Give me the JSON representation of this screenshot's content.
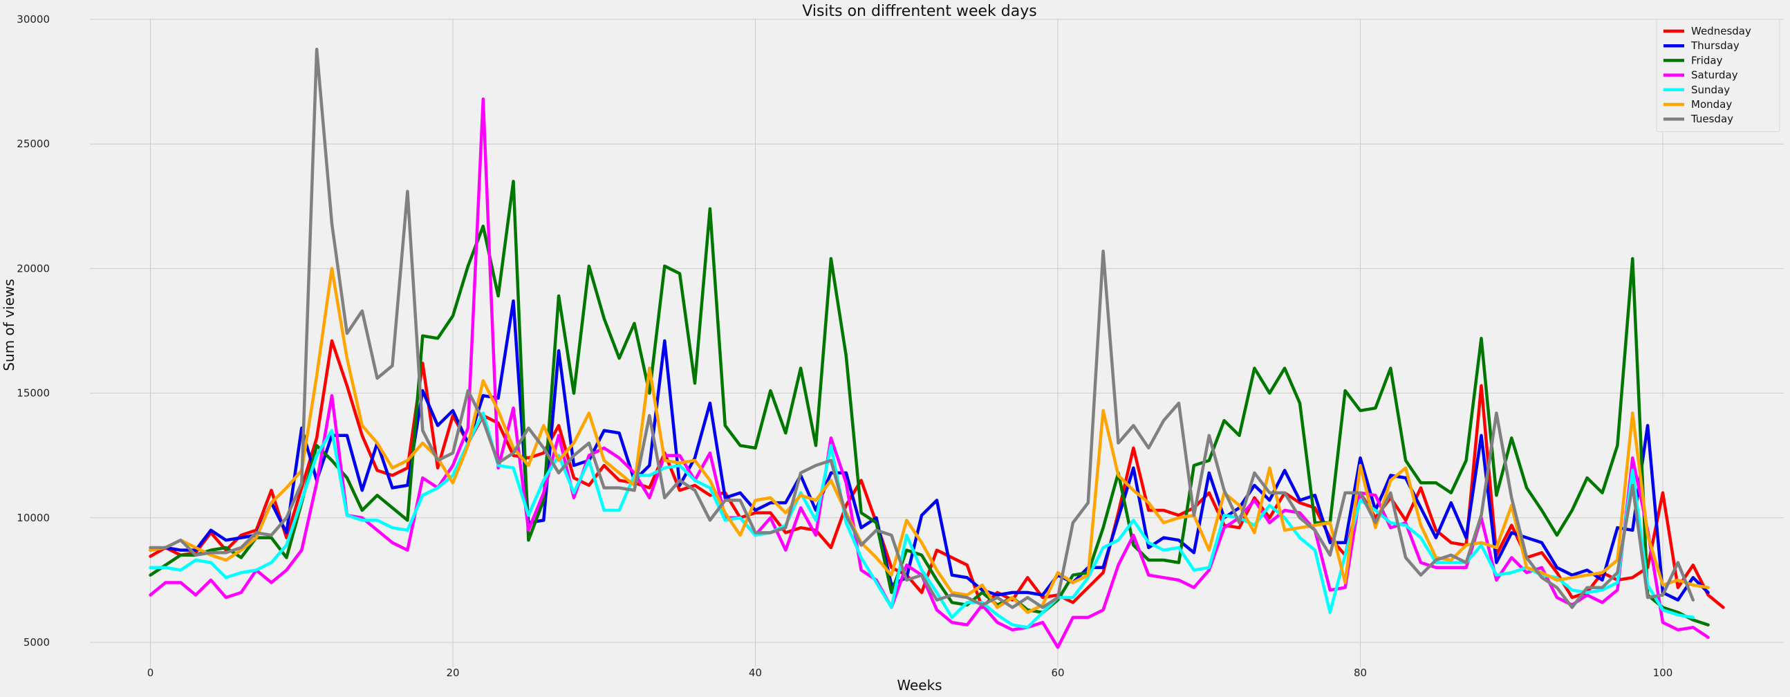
{
  "chart_data": {
    "type": "line",
    "title": "Visits on diffrentent week days",
    "xlabel": "Weeks",
    "ylabel": "Sum of views",
    "xlim": [
      -4,
      108
    ],
    "ylim": [
      4000,
      30000
    ],
    "xticks": [
      0,
      20,
      40,
      60,
      80,
      100
    ],
    "yticks": [
      5000,
      10000,
      15000,
      20000,
      25000,
      30000
    ],
    "grid": true,
    "legend_position": "top-right",
    "series": [
      {
        "name": "Wednesday",
        "color": "#ff0000",
        "x_start": 0,
        "values": [
          8450,
          8800,
          8500,
          8600,
          9400,
          8700,
          9300,
          9500,
          11100,
          9200,
          11200,
          13200,
          17100,
          15300,
          13300,
          11900,
          11700,
          12000,
          16200,
          12000,
          14100,
          13000,
          14100,
          13800,
          12500,
          12400,
          12600,
          13700,
          11600,
          11300,
          12100,
          11500,
          11400,
          11200,
          12600,
          11100,
          11300,
          10900,
          11000,
          10000,
          10200,
          10200,
          9400,
          9600,
          9500,
          8800,
          10500,
          11500,
          9800,
          8000,
          7700,
          7000,
          8700,
          8400,
          8100,
          6400,
          7000,
          6700,
          7600,
          6800,
          6900,
          6600,
          7200,
          7800,
          10200,
          12800,
          10300,
          10300,
          10100,
          10400,
          11000,
          9700,
          9600,
          10800,
          10000,
          11000,
          10600,
          10400,
          9200,
          8500,
          11000,
          10000,
          10800,
          9900,
          11200,
          9500,
          9000,
          8900,
          15300,
          8500,
          9700,
          8400,
          8600,
          7800,
          6800,
          7000,
          7800,
          7500,
          7600,
          8000,
          11000,
          7200,
          8100,
          6900,
          6400
        ]
      },
      {
        "name": "Thursday",
        "color": "#0000ee",
        "x_start": 0,
        "values": [
          8700,
          8800,
          8700,
          8700,
          9500,
          9100,
          9200,
          9300,
          10600,
          9400,
          13600,
          11500,
          13300,
          13300,
          11100,
          13000,
          11200,
          11300,
          15100,
          13700,
          14300,
          13000,
          14900,
          14800,
          18700,
          9800,
          9900,
          16700,
          12100,
          12300,
          13500,
          13400,
          11500,
          12100,
          17100,
          11300,
          12400,
          14600,
          10800,
          11000,
          10300,
          10600,
          10600,
          11700,
          10300,
          11800,
          11800,
          9600,
          10000,
          7300,
          7600,
          10100,
          10700,
          7700,
          7600,
          7100,
          6900,
          7000,
          7000,
          6900,
          7700,
          7400,
          8000,
          8000,
          10000,
          12000,
          8800,
          9200,
          9100,
          8600,
          11800,
          10000,
          10400,
          11300,
          10700,
          11900,
          10700,
          10900,
          9000,
          9000,
          12400,
          10300,
          11700,
          11600,
          10400,
          9200,
          10600,
          9200,
          13300,
          8200,
          9400,
          9200,
          9000,
          8000,
          7700,
          7900,
          7500,
          9600,
          9500,
          13700,
          7000,
          6700,
          7600,
          7000
        ]
      },
      {
        "name": "Friday",
        "color": "#007700",
        "x_start": 0,
        "values": [
          7700,
          8100,
          8500,
          8500,
          8700,
          8800,
          8400,
          9200,
          9200,
          8400,
          10600,
          12900,
          12300,
          11600,
          10300,
          10900,
          10400,
          9900,
          17300,
          17200,
          18100,
          20100,
          21700,
          18900,
          23500,
          9100,
          10700,
          18900,
          15000,
          20100,
          18000,
          16400,
          17800,
          15000,
          20100,
          19800,
          15400,
          22400,
          13700,
          12900,
          12800,
          15100,
          13400,
          16000,
          12900,
          20400,
          16500,
          10200,
          9800,
          7000,
          8700,
          8500,
          7500,
          6600,
          6500,
          7000,
          6500,
          6800,
          6300,
          6200,
          6700,
          7700,
          7800,
          9600,
          11800,
          8900,
          8300,
          8300,
          8200,
          12100,
          12300,
          13900,
          13300,
          16000,
          15000,
          16000,
          14600,
          9800,
          9800,
          15100,
          14300,
          14400,
          16000,
          12300,
          11400,
          11400,
          11000,
          12300,
          17200,
          10900,
          13200,
          11200,
          10300,
          9300,
          10300,
          11600,
          11000,
          12900,
          20400,
          6900,
          6400,
          6200,
          5900,
          5700
        ]
      },
      {
        "name": "Saturday",
        "color": "#ff00ff",
        "x_start": 0,
        "values": [
          6900,
          7400,
          7400,
          6900,
          7500,
          6800,
          7000,
          7900,
          7400,
          7900,
          8700,
          11400,
          14900,
          10100,
          10000,
          9500,
          9000,
          8700,
          11600,
          11200,
          12100,
          13600,
          26800,
          12000,
          14400,
          9500,
          11000,
          13300,
          10800,
          12500,
          12800,
          12400,
          11800,
          10800,
          12500,
          12500,
          11500,
          12600,
          10000,
          10000,
          9300,
          10000,
          8700,
          10400,
          9300,
          13200,
          11400,
          7900,
          7500,
          6400,
          8100,
          7700,
          6300,
          5800,
          5700,
          6500,
          5800,
          5500,
          5600,
          5800,
          4800,
          6000,
          6000,
          6300,
          8100,
          9300,
          7700,
          7600,
          7500,
          7200,
          7900,
          9600,
          10000,
          10700,
          9800,
          10300,
          10200,
          9500,
          7100,
          7200,
          11000,
          10900,
          9600,
          9800,
          8200,
          8000,
          8000,
          8000,
          10000,
          7500,
          8400,
          7800,
          8000,
          6800,
          6500,
          6900,
          6600,
          7100,
          12400,
          9500,
          5800,
          5500,
          5600,
          5200
        ]
      },
      {
        "name": "Sunday",
        "color": "#00ffff",
        "x_start": 0,
        "values": [
          8000,
          8000,
          7900,
          8300,
          8200,
          7600,
          7800,
          7900,
          8200,
          8900,
          10700,
          12500,
          13500,
          10100,
          9900,
          9900,
          9600,
          9500,
          10900,
          11200,
          11700,
          13000,
          14200,
          12100,
          12000,
          10100,
          11500,
          12500,
          11000,
          12300,
          10300,
          10300,
          11700,
          11700,
          12000,
          12100,
          11500,
          11200,
          9900,
          10000,
          9300,
          9400,
          9700,
          11000,
          9900,
          12900,
          9800,
          8400,
          7400,
          6400,
          9300,
          7900,
          7000,
          6000,
          6600,
          6600,
          6100,
          5700,
          5600,
          6200,
          6800,
          6800,
          7600,
          8800,
          9100,
          9900,
          9000,
          8700,
          8800,
          7900,
          8000,
          10100,
          10000,
          9700,
          10500,
          10000,
          9200,
          8700,
          6200,
          8500,
          10700,
          10300,
          9800,
          9700,
          9200,
          8200,
          8200,
          8200,
          8900,
          7700,
          7800,
          8000,
          7700,
          7600,
          7100,
          7000,
          7100,
          7400,
          11900,
          7300,
          6300,
          6100,
          6000
        ]
      },
      {
        "name": "Monday",
        "color": "#ffa500",
        "x_start": 0,
        "values": [
          8700,
          8800,
          9100,
          8800,
          8500,
          8300,
          8700,
          9200,
          10600,
          11200,
          11900,
          15700,
          20000,
          16400,
          13700,
          13000,
          12000,
          12300,
          13000,
          12400,
          11400,
          12900,
          15500,
          14300,
          12800,
          12100,
          13700,
          12300,
          13000,
          14200,
          12300,
          11800,
          11300,
          16000,
          12300,
          12200,
          12300,
          11500,
          10200,
          9300,
          10700,
          10800,
          10200,
          10900,
          10700,
          11500,
          10200,
          9000,
          8400,
          7700,
          9900,
          9000,
          7900,
          7000,
          6900,
          7300,
          6400,
          6800,
          6200,
          6500,
          7800,
          7400,
          7700,
          14300,
          11700,
          11100,
          10600,
          9800,
          10000,
          10100,
          8700,
          11000,
          10500,
          9400,
          12000,
          9500,
          9600,
          9700,
          9800,
          7400,
          12100,
          9600,
          11500,
          12000,
          9700,
          8400,
          8300,
          8900,
          9000,
          8800,
          10500,
          8000,
          7800,
          7500,
          7600,
          7700,
          7800,
          8300,
          14200,
          9300,
          7300,
          7500,
          7300,
          7200
        ]
      },
      {
        "name": "Tuesday",
        "color": "#808080",
        "x_start": 0,
        "values": [
          8800,
          8800,
          9100,
          8500,
          8600,
          8600,
          8800,
          9400,
          9300,
          10000,
          11400,
          28800,
          21800,
          17400,
          18300,
          15600,
          16100,
          23100,
          13500,
          12300,
          12600,
          15100,
          13900,
          12200,
          12600,
          13600,
          12800,
          11800,
          12500,
          13000,
          11200,
          11200,
          11100,
          14100,
          10800,
          11500,
          11100,
          9900,
          10700,
          10700,
          9400,
          9400,
          9600,
          11800,
          12100,
          12300,
          10100,
          8900,
          9500,
          9300,
          7500,
          7700,
          6700,
          6900,
          6800,
          6500,
          6800,
          6400,
          6800,
          6400,
          6800,
          9800,
          10600,
          20700,
          13000,
          13700,
          12800,
          13900,
          14600,
          10100,
          13300,
          11100,
          9800,
          11800,
          11000,
          11000,
          10000,
          9500,
          8500,
          11000,
          11000,
          9800,
          11000,
          8400,
          7700,
          8300,
          8500,
          8200,
          10100,
          14200,
          10800,
          8400,
          7600,
          7200,
          6400,
          7200,
          7200,
          7800,
          11300,
          6800,
          6900,
          8200,
          6700
        ]
      }
    ]
  }
}
